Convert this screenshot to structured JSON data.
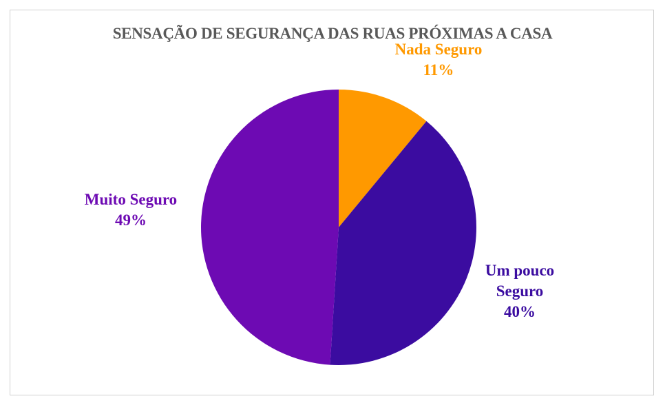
{
  "chart_data": {
    "type": "pie",
    "title": "SENSAÇÃO DE SEGURANÇA DAS RUAS PRÓXIMAS A CASA",
    "categories": [
      "Nada Seguro",
      "Um pouco Seguro",
      "Muito Seguro"
    ],
    "values": [
      11,
      40,
      49
    ],
    "value_labels": [
      "11%",
      "40%",
      "49%"
    ],
    "colors": [
      "#ff9900",
      "#3b0ca0",
      "#6d0ab3"
    ]
  }
}
